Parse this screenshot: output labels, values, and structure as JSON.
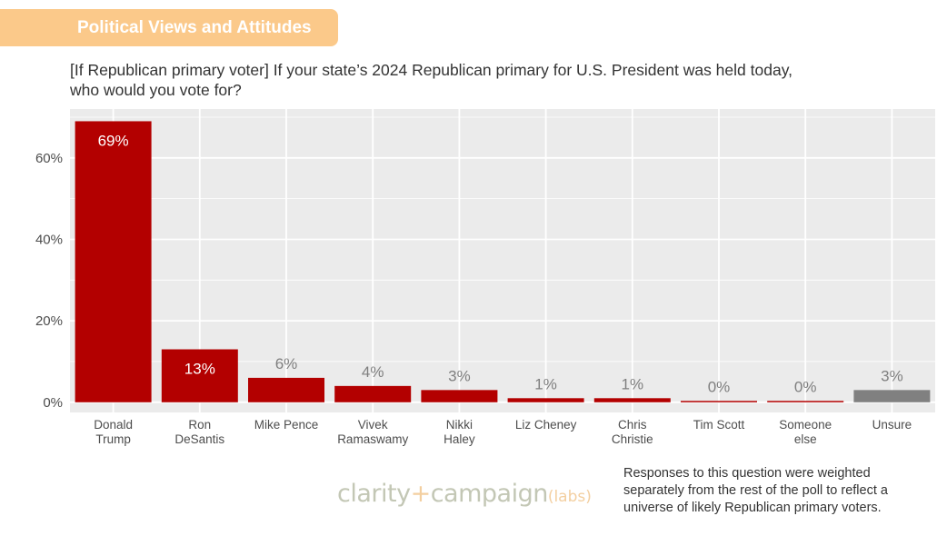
{
  "header": {
    "section_title": "Political Views and Attitudes"
  },
  "question": {
    "line1": "[If Republican primary voter] If your state’s 2024 Republican primary for U.S. President was held today,",
    "line2": "who would you vote for?"
  },
  "footnote": {
    "line1": "Responses to this question were weighted",
    "line2": "separately from the rest of the poll to reflect a",
    "line3": "universe of likely Republican primary voters."
  },
  "logo": {
    "part1": "clarity",
    "plus": "+",
    "part2": "campaign",
    "labs": "(labs)"
  },
  "colors": {
    "bar_red": "#b30000",
    "bar_unsure": "#808080",
    "panel_bg": "#ebebeb",
    "grid": "#ffffff",
    "header_bg": "#fbc98a"
  },
  "chart_data": {
    "type": "bar",
    "categories": [
      [
        "Donald",
        "Trump"
      ],
      [
        "Ron",
        "DeSantis"
      ],
      [
        "Mike Pence"
      ],
      [
        "Vivek",
        "Ramaswamy"
      ],
      [
        "Nikki",
        "Haley"
      ],
      [
        "Liz Cheney"
      ],
      [
        "Chris",
        "Christie"
      ],
      [
        "Tim Scott"
      ],
      [
        "Someone",
        "else"
      ],
      [
        "Unsure"
      ]
    ],
    "values": [
      69,
      13,
      6,
      4,
      3,
      1,
      1,
      0,
      0,
      3
    ],
    "data_labels": [
      "69%",
      "13%",
      "6%",
      "4%",
      "3%",
      "1%",
      "1%",
      "0%",
      "0%",
      "3%"
    ],
    "bar_colors": [
      "#b30000",
      "#b30000",
      "#b30000",
      "#b30000",
      "#b30000",
      "#b30000",
      "#b30000",
      "#b30000",
      "#b30000",
      "#808080"
    ],
    "y_ticks": [
      0,
      20,
      40,
      60
    ],
    "y_tick_labels": [
      "0%",
      "20%",
      "40%",
      "60%"
    ],
    "ylim": [
      -2.5,
      72
    ],
    "grid": true
  }
}
